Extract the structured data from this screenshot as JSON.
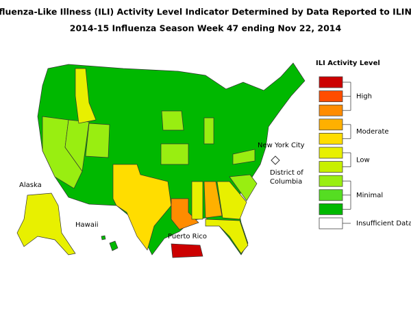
{
  "header": {
    "title": "Influenza-Like Illness (ILI) Activity Level Indicator Determined by Data Reported to ILINet",
    "subtitle": "2014-15  Influenza Season Week  47 ending Nov 22, 2014"
  },
  "legend": {
    "title": "ILI Activity Level",
    "groups": [
      {
        "label": "High",
        "colors": [
          "#cc0000",
          "#ff4d00",
          "#ff8c00"
        ]
      },
      {
        "label": "Moderate",
        "colors": [
          "#ffb000",
          "#ffdd00"
        ]
      },
      {
        "label": "Low",
        "colors": [
          "#e8f000",
          "#c8f000"
        ]
      },
      {
        "label": "Minimal",
        "colors": [
          "#99ee11",
          "#55dd22",
          "#00b800"
        ]
      },
      {
        "label": "Insufficient Data",
        "colors": [
          "#ffffff"
        ]
      }
    ]
  },
  "map": {
    "labels": {
      "alaska": "Alaska",
      "hawaii": "Hawaii",
      "puerto_rico": "Puerto Rico",
      "nyc": "New York City",
      "dc": [
        "District of",
        "Columbia"
      ]
    }
  }
}
